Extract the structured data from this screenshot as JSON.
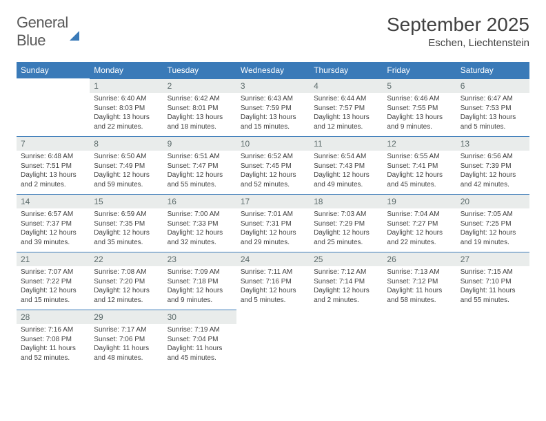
{
  "logo": {
    "line1": "General",
    "line2": "Blue"
  },
  "title": "September 2025",
  "location": "Eschen, Liechtenstein",
  "weekdays": [
    "Sunday",
    "Monday",
    "Tuesday",
    "Wednesday",
    "Thursday",
    "Friday",
    "Saturday"
  ],
  "colors": {
    "accent": "#3a7ab8",
    "header_bg": "#e9eceb",
    "text": "#404040",
    "logo_gray": "#5a5a5a"
  },
  "fonts": {
    "title_size": 28,
    "location_size": 15,
    "weekday_size": 12,
    "daynum_size": 12,
    "body_size": 10
  },
  "weeks": [
    [
      {
        "num": "",
        "sunrise": "",
        "sunset": "",
        "daylight": ""
      },
      {
        "num": "1",
        "sunrise": "Sunrise: 6:40 AM",
        "sunset": "Sunset: 8:03 PM",
        "daylight": "Daylight: 13 hours and 22 minutes."
      },
      {
        "num": "2",
        "sunrise": "Sunrise: 6:42 AM",
        "sunset": "Sunset: 8:01 PM",
        "daylight": "Daylight: 13 hours and 18 minutes."
      },
      {
        "num": "3",
        "sunrise": "Sunrise: 6:43 AM",
        "sunset": "Sunset: 7:59 PM",
        "daylight": "Daylight: 13 hours and 15 minutes."
      },
      {
        "num": "4",
        "sunrise": "Sunrise: 6:44 AM",
        "sunset": "Sunset: 7:57 PM",
        "daylight": "Daylight: 13 hours and 12 minutes."
      },
      {
        "num": "5",
        "sunrise": "Sunrise: 6:46 AM",
        "sunset": "Sunset: 7:55 PM",
        "daylight": "Daylight: 13 hours and 9 minutes."
      },
      {
        "num": "6",
        "sunrise": "Sunrise: 6:47 AM",
        "sunset": "Sunset: 7:53 PM",
        "daylight": "Daylight: 13 hours and 5 minutes."
      }
    ],
    [
      {
        "num": "7",
        "sunrise": "Sunrise: 6:48 AM",
        "sunset": "Sunset: 7:51 PM",
        "daylight": "Daylight: 13 hours and 2 minutes."
      },
      {
        "num": "8",
        "sunrise": "Sunrise: 6:50 AM",
        "sunset": "Sunset: 7:49 PM",
        "daylight": "Daylight: 12 hours and 59 minutes."
      },
      {
        "num": "9",
        "sunrise": "Sunrise: 6:51 AM",
        "sunset": "Sunset: 7:47 PM",
        "daylight": "Daylight: 12 hours and 55 minutes."
      },
      {
        "num": "10",
        "sunrise": "Sunrise: 6:52 AM",
        "sunset": "Sunset: 7:45 PM",
        "daylight": "Daylight: 12 hours and 52 minutes."
      },
      {
        "num": "11",
        "sunrise": "Sunrise: 6:54 AM",
        "sunset": "Sunset: 7:43 PM",
        "daylight": "Daylight: 12 hours and 49 minutes."
      },
      {
        "num": "12",
        "sunrise": "Sunrise: 6:55 AM",
        "sunset": "Sunset: 7:41 PM",
        "daylight": "Daylight: 12 hours and 45 minutes."
      },
      {
        "num": "13",
        "sunrise": "Sunrise: 6:56 AM",
        "sunset": "Sunset: 7:39 PM",
        "daylight": "Daylight: 12 hours and 42 minutes."
      }
    ],
    [
      {
        "num": "14",
        "sunrise": "Sunrise: 6:57 AM",
        "sunset": "Sunset: 7:37 PM",
        "daylight": "Daylight: 12 hours and 39 minutes."
      },
      {
        "num": "15",
        "sunrise": "Sunrise: 6:59 AM",
        "sunset": "Sunset: 7:35 PM",
        "daylight": "Daylight: 12 hours and 35 minutes."
      },
      {
        "num": "16",
        "sunrise": "Sunrise: 7:00 AM",
        "sunset": "Sunset: 7:33 PM",
        "daylight": "Daylight: 12 hours and 32 minutes."
      },
      {
        "num": "17",
        "sunrise": "Sunrise: 7:01 AM",
        "sunset": "Sunset: 7:31 PM",
        "daylight": "Daylight: 12 hours and 29 minutes."
      },
      {
        "num": "18",
        "sunrise": "Sunrise: 7:03 AM",
        "sunset": "Sunset: 7:29 PM",
        "daylight": "Daylight: 12 hours and 25 minutes."
      },
      {
        "num": "19",
        "sunrise": "Sunrise: 7:04 AM",
        "sunset": "Sunset: 7:27 PM",
        "daylight": "Daylight: 12 hours and 22 minutes."
      },
      {
        "num": "20",
        "sunrise": "Sunrise: 7:05 AM",
        "sunset": "Sunset: 7:25 PM",
        "daylight": "Daylight: 12 hours and 19 minutes."
      }
    ],
    [
      {
        "num": "21",
        "sunrise": "Sunrise: 7:07 AM",
        "sunset": "Sunset: 7:22 PM",
        "daylight": "Daylight: 12 hours and 15 minutes."
      },
      {
        "num": "22",
        "sunrise": "Sunrise: 7:08 AM",
        "sunset": "Sunset: 7:20 PM",
        "daylight": "Daylight: 12 hours and 12 minutes."
      },
      {
        "num": "23",
        "sunrise": "Sunrise: 7:09 AM",
        "sunset": "Sunset: 7:18 PM",
        "daylight": "Daylight: 12 hours and 9 minutes."
      },
      {
        "num": "24",
        "sunrise": "Sunrise: 7:11 AM",
        "sunset": "Sunset: 7:16 PM",
        "daylight": "Daylight: 12 hours and 5 minutes."
      },
      {
        "num": "25",
        "sunrise": "Sunrise: 7:12 AM",
        "sunset": "Sunset: 7:14 PM",
        "daylight": "Daylight: 12 hours and 2 minutes."
      },
      {
        "num": "26",
        "sunrise": "Sunrise: 7:13 AM",
        "sunset": "Sunset: 7:12 PM",
        "daylight": "Daylight: 11 hours and 58 minutes."
      },
      {
        "num": "27",
        "sunrise": "Sunrise: 7:15 AM",
        "sunset": "Sunset: 7:10 PM",
        "daylight": "Daylight: 11 hours and 55 minutes."
      }
    ],
    [
      {
        "num": "28",
        "sunrise": "Sunrise: 7:16 AM",
        "sunset": "Sunset: 7:08 PM",
        "daylight": "Daylight: 11 hours and 52 minutes."
      },
      {
        "num": "29",
        "sunrise": "Sunrise: 7:17 AM",
        "sunset": "Sunset: 7:06 PM",
        "daylight": "Daylight: 11 hours and 48 minutes."
      },
      {
        "num": "30",
        "sunrise": "Sunrise: 7:19 AM",
        "sunset": "Sunset: 7:04 PM",
        "daylight": "Daylight: 11 hours and 45 minutes."
      },
      {
        "num": "",
        "sunrise": "",
        "sunset": "",
        "daylight": ""
      },
      {
        "num": "",
        "sunrise": "",
        "sunset": "",
        "daylight": ""
      },
      {
        "num": "",
        "sunrise": "",
        "sunset": "",
        "daylight": ""
      },
      {
        "num": "",
        "sunrise": "",
        "sunset": "",
        "daylight": ""
      }
    ]
  ]
}
